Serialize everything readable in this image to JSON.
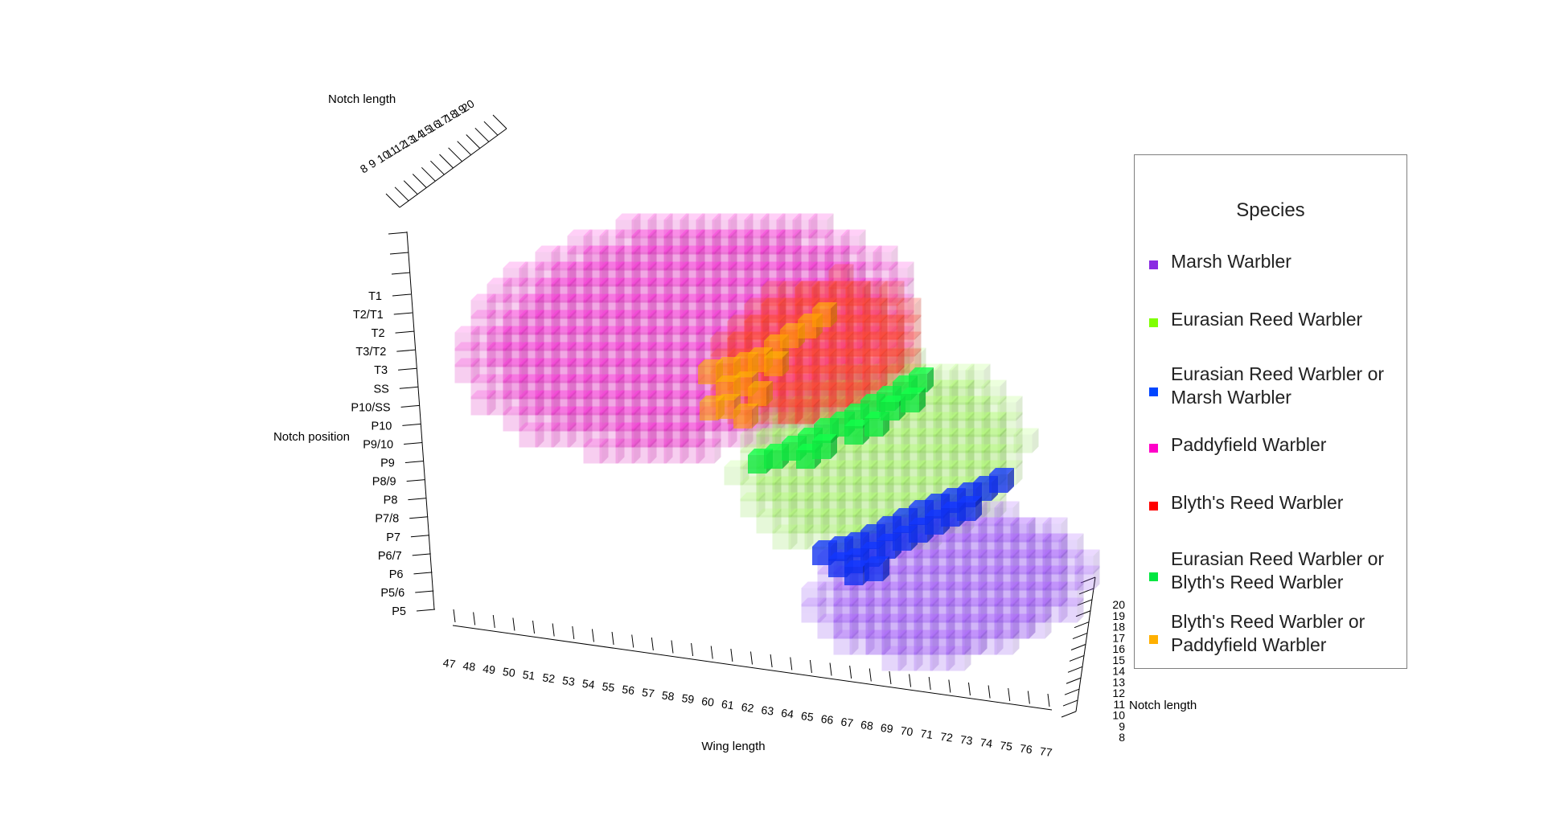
{
  "chart_data": {
    "type": "scatter",
    "subtype": "3d-voxel",
    "axes": {
      "x": {
        "label": "Wing length",
        "ticks": [
          "47",
          "48",
          "49",
          "50",
          "51",
          "52",
          "53",
          "54",
          "55",
          "56",
          "57",
          "58",
          "59",
          "60",
          "61",
          "62",
          "63",
          "64",
          "65",
          "66",
          "67",
          "68",
          "69",
          "70",
          "71",
          "72",
          "73",
          "74",
          "75",
          "76",
          "77"
        ]
      },
      "y": {
        "label": "Notch position",
        "ticks": [
          "T1",
          "T2/T1",
          "T2",
          "T3/T2",
          "T3",
          "SS",
          "P10/SS",
          "P10",
          "P9/10",
          "P9",
          "P8/9",
          "P8",
          "P7/8",
          "P7",
          "P6/7",
          "P6",
          "P5/6",
          "P5"
        ]
      },
      "z": {
        "label": "Notch length",
        "ticks": [
          "8",
          "9",
          "10",
          "11",
          "12",
          "13",
          "14",
          "15",
          "16",
          "17",
          "18",
          "19",
          "20"
        ]
      },
      "z_back": {
        "label": "Notch length",
        "ticks": [
          "8",
          "9",
          "10",
          "11",
          "12",
          "13",
          "14",
          "15",
          "16",
          "17",
          "18",
          "19",
          "20"
        ]
      }
    },
    "legend": {
      "title": "Species",
      "placement": "right",
      "entries": [
        {
          "label": "Marsh Warbler",
          "color": "#8a2be2"
        },
        {
          "label": "Eurasian Reed Warbler",
          "color": "#7fff00"
        },
        {
          "label": "Eurasian Reed Warbler or Marsh Warbler",
          "color": "#0046ff"
        },
        {
          "label": "Paddyfield Warbler",
          "color": "#ff00c8"
        },
        {
          "label": "Blyth's Reed Warbler",
          "color": "#ff0000"
        },
        {
          "label": "Eurasian Reed Warbler or Blyth's Reed Warbler",
          "color": "#00e640"
        },
        {
          "label": "Blyth's Reed Warbler or Paddyfield Warbler",
          "color": "#ffb000"
        }
      ]
    },
    "regions": [
      {
        "species": "Paddyfield Warbler",
        "wing_range": [
          47,
          64
        ],
        "notch_position_range": [
          "P8",
          "T1"
        ],
        "color": "#e030c0"
      },
      {
        "species": "Blyth's Reed Warbler",
        "wing_range": [
          58,
          65
        ],
        "notch_position_range": [
          "P9",
          "T2"
        ],
        "color": "#ff3a2a"
      },
      {
        "species": "Blyth's Reed Warbler or Paddyfield Warbler",
        "wing_range": [
          58,
          62
        ],
        "notch_position_range": [
          "P9",
          "T3"
        ],
        "color": "#ffa500"
      },
      {
        "species": "Eurasian Reed Warbler or Blyth's Reed Warbler",
        "wing_range": [
          60,
          64
        ],
        "notch_position_range": [
          "P8",
          "T3"
        ],
        "color": "#00e640"
      },
      {
        "species": "Eurasian Reed Warbler",
        "wing_range": [
          62,
          71
        ],
        "notch_position_range": [
          "P6",
          "T3"
        ],
        "color": "#9ee36a"
      },
      {
        "species": "Eurasian Reed Warbler or Marsh Warbler",
        "wing_range": [
          64,
          70
        ],
        "notch_position_range": [
          "P6",
          "P8"
        ],
        "color": "#0030ff"
      },
      {
        "species": "Marsh Warbler",
        "wing_range": [
          65,
          73
        ],
        "notch_position_range": [
          "P5",
          "P8"
        ],
        "color": "#9a5cf0"
      }
    ]
  }
}
